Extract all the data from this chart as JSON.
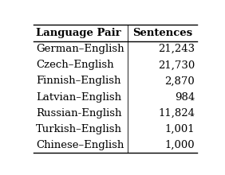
{
  "col_headers": [
    "Language Pair",
    "Sentences"
  ],
  "rows": [
    [
      "German–English",
      "21,243"
    ],
    [
      "Czech–English",
      "21,730"
    ],
    [
      "Finnish–English",
      "2,870"
    ],
    [
      "Latvian–English",
      "984"
    ],
    [
      "Russian-English",
      "11,824"
    ],
    [
      "Turkish–English",
      "1,001"
    ],
    [
      "Chinese–English",
      "1,000"
    ]
  ],
  "bg_color": "#ffffff",
  "line_color": "#000000",
  "text_color": "#000000",
  "font_size": 9.5,
  "header_font_size": 9.5,
  "figsize": [
    2.82,
    2.2
  ],
  "dpi": 100,
  "col_split": 0.575
}
